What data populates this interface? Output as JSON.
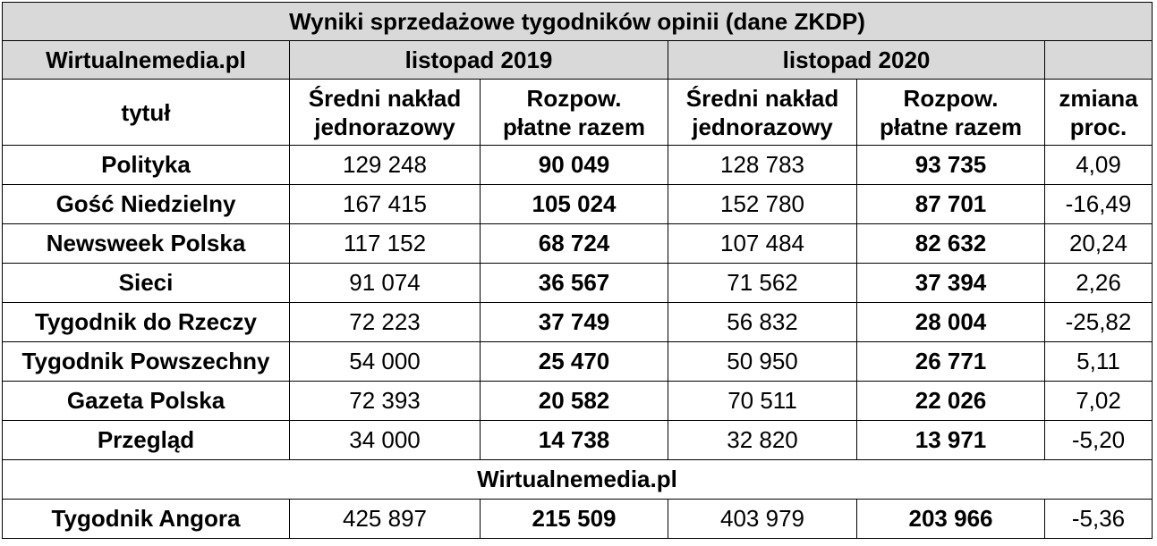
{
  "table": {
    "title": "Wyniki sprzedażowe tygodników opinii (dane ZKDP)",
    "source": "Wirtualnemedia.pl",
    "period_1": "listopad 2019",
    "period_2": "listopad 2020",
    "col_title": "tytuł",
    "col_avg_line1": "Średni nakład",
    "col_avg_line2": "jednorazowy",
    "col_paid_line1": "Rozpow.",
    "col_paid_line2": "płatne razem",
    "col_change_line1": "zmiana",
    "col_change_line2": "proc.",
    "rows": [
      {
        "title": "Polityka",
        "avg_2019": "129 248",
        "paid_2019": "90 049",
        "avg_2020": "128 783",
        "paid_2020": "93 735",
        "change": "4,09"
      },
      {
        "title": "Gość Niedzielny",
        "avg_2019": "167 415",
        "paid_2019": "105 024",
        "avg_2020": "152 780",
        "paid_2020": "87 701",
        "change": "-16,49"
      },
      {
        "title": "Newsweek Polska",
        "avg_2019": "117 152",
        "paid_2019": "68 724",
        "avg_2020": "107 484",
        "paid_2020": "82 632",
        "change": "20,24"
      },
      {
        "title": "Sieci",
        "avg_2019": "91 074",
        "paid_2019": "36 567",
        "avg_2020": "71 562",
        "paid_2020": "37 394",
        "change": "2,26"
      },
      {
        "title": "Tygodnik do Rzeczy",
        "avg_2019": "72 223",
        "paid_2019": "37 749",
        "avg_2020": "56 832",
        "paid_2020": "28 004",
        "change": "-25,82"
      },
      {
        "title": "Tygodnik Powszechny",
        "avg_2019": "54 000",
        "paid_2019": "25 470",
        "avg_2020": "50 950",
        "paid_2020": "26 771",
        "change": "5,11"
      },
      {
        "title": "Gazeta Polska",
        "avg_2019": "72 393",
        "paid_2019": "20 582",
        "avg_2020": "70 511",
        "paid_2020": "22 026",
        "change": "7,02"
      },
      {
        "title": "Przegląd",
        "avg_2019": "34 000",
        "paid_2019": "14 738",
        "avg_2020": "32 820",
        "paid_2020": "13 971",
        "change": "-5,20"
      }
    ],
    "subheader": "Wirtualnemedia.pl",
    "extra_row": {
      "title": "Tygodnik Angora",
      "avg_2019": "425 897",
      "paid_2019": "215 509",
      "avg_2020": "403 979",
      "paid_2020": "203 966",
      "change": "-5,36"
    }
  }
}
